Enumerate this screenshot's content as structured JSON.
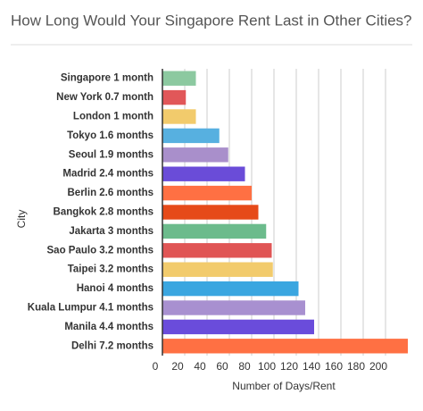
{
  "chart_data": {
    "type": "bar",
    "orientation": "horizontal",
    "title": "How Long Would Your Singapore Rent Last in Other Cities?",
    "y_label": "City",
    "x_label": "Number of Days/Rent",
    "categories": [
      "Singapore 1 month",
      "New York 0.7 month",
      "London 1 month",
      "Tokyo 1.6 months",
      "Seoul 1.9 months",
      "Madrid 2.4 months",
      "Berlin 2.6 months",
      "Bangkok 2.8 months",
      "Jakarta 3 months",
      "Sao Paulo 3.2 months",
      "Taipei 3.2 months",
      "Hanoi 4 months",
      "Kuala Lumpur 4.1 months",
      "Manila 4.4 months",
      "Delhi 7.2 months"
    ],
    "values": [
      30,
      21,
      30,
      51,
      59,
      74,
      80,
      86,
      93,
      98,
      99,
      122,
      128,
      136,
      220
    ],
    "colors": [
      "#8cc9a0",
      "#e15759",
      "#f2cb6c",
      "#57b0e0",
      "#a98fcb",
      "#6a4cd8",
      "#ff7043",
      "#e64a19",
      "#6cbb8c",
      "#e05555",
      "#f2cb6c",
      "#3aa6e0",
      "#a890d0",
      "#6a4cdb",
      "#ff7043"
    ],
    "xlim": [
      0,
      220
    ],
    "xticks": [
      0,
      20,
      40,
      60,
      80,
      100,
      120,
      140,
      160,
      180,
      200
    ],
    "grid": true
  }
}
